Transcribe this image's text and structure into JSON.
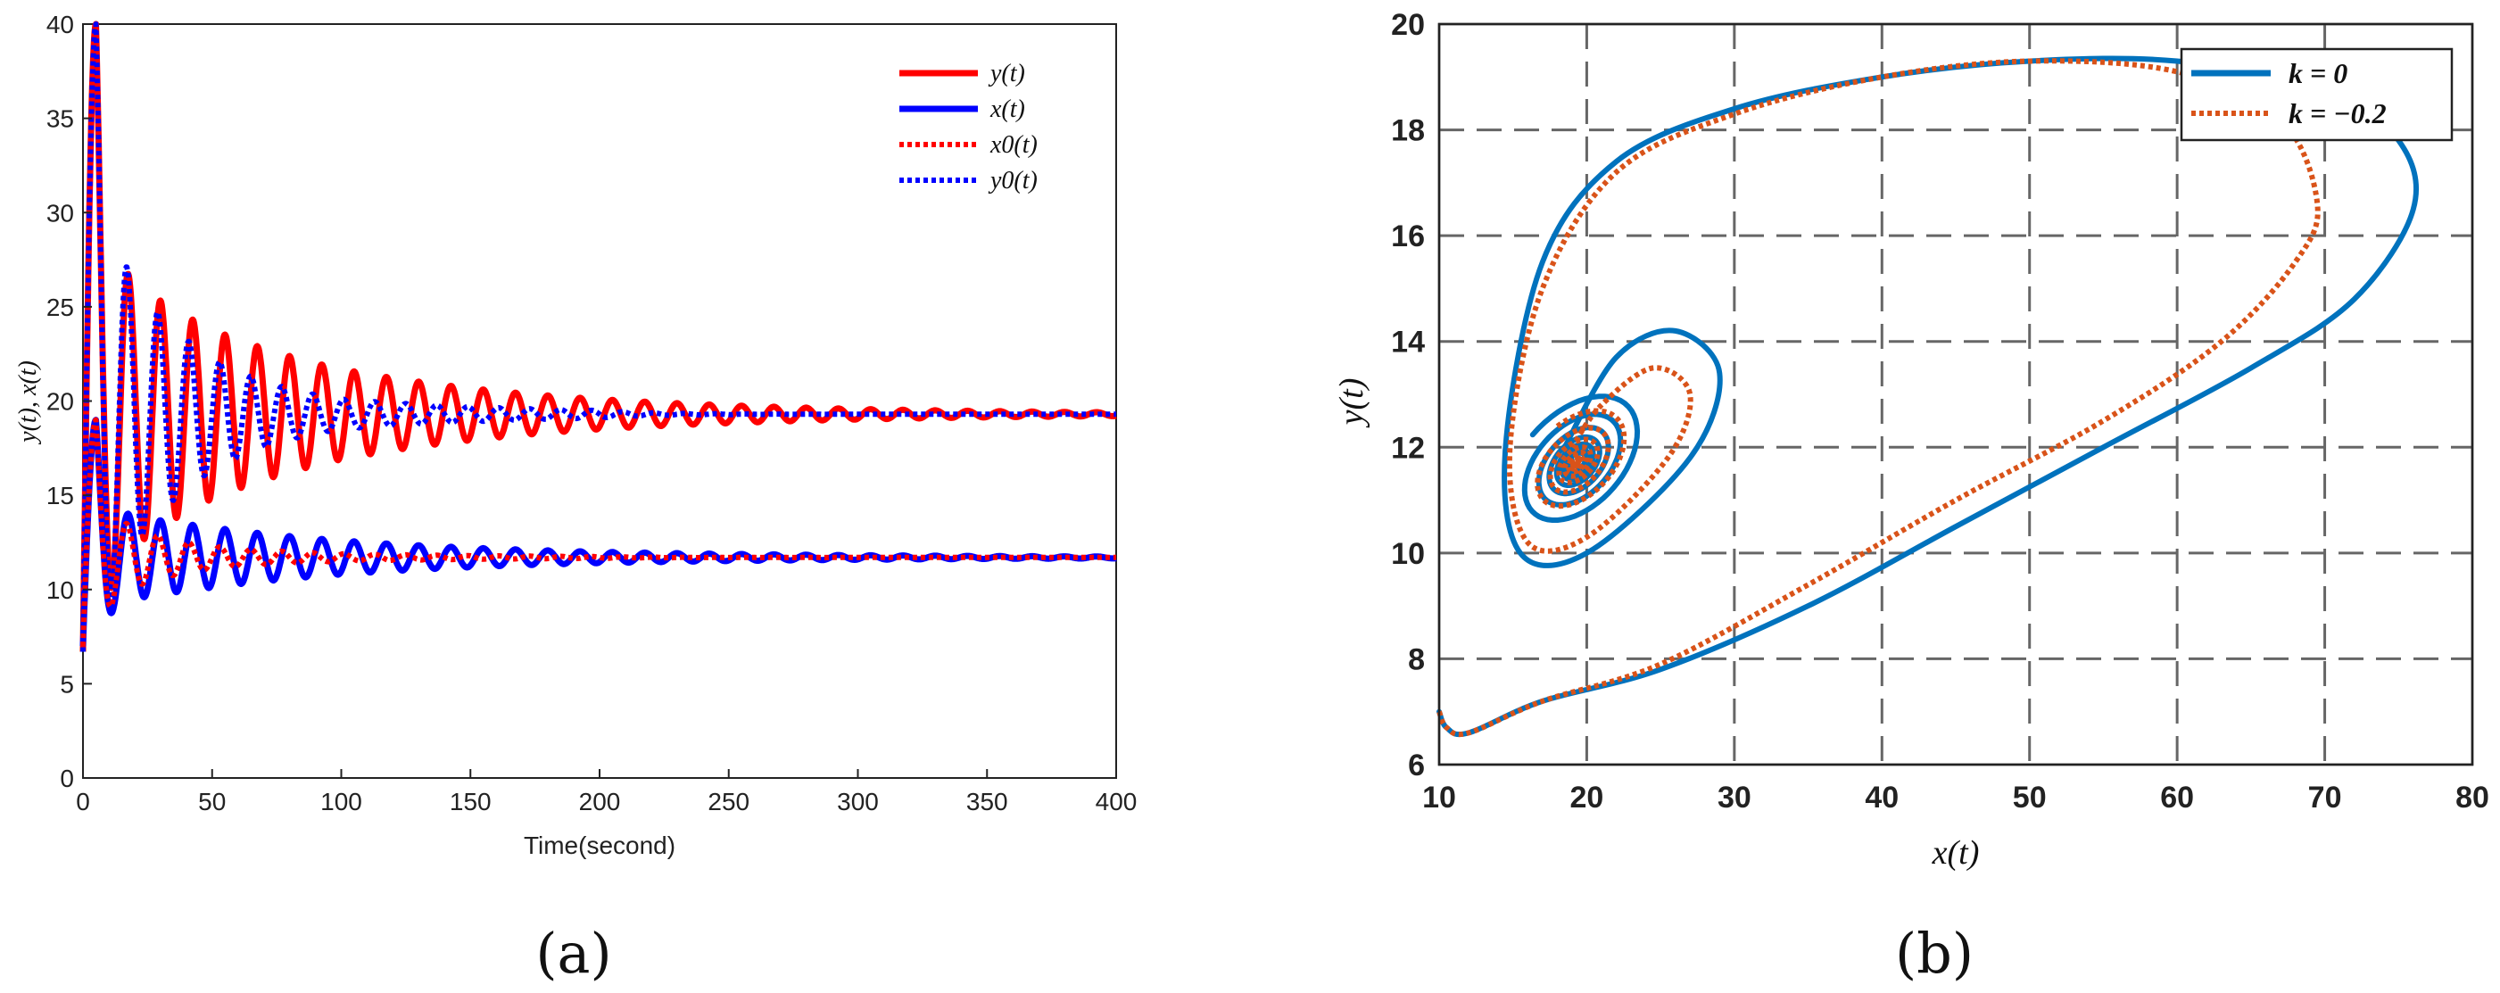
{
  "chart_data": [
    {
      "panel_label": "(a)",
      "type": "line",
      "xlabel": "Time(second)",
      "ylabel": "y(t), x(t)",
      "xlim": [
        0,
        400
      ],
      "ylim": [
        0,
        40
      ],
      "x_ticks": [
        "0",
        "50",
        "100",
        "150",
        "200",
        "250",
        "300",
        "350",
        "400"
      ],
      "y_ticks": [
        "0",
        "5",
        "10",
        "15",
        "20",
        "25",
        "30",
        "35",
        "40"
      ],
      "grid": false,
      "legend_position": "top-right",
      "series": [
        {
          "name": "y(t)",
          "color": "#ff0000",
          "style": "solid",
          "equilibrium": 19.3,
          "start": 6.7,
          "first_peak": 40,
          "osc_period": 12.5,
          "envelope": [
            [
              15,
              7.5
            ],
            [
              50,
              4.5
            ],
            [
              100,
              2.4
            ],
            [
              200,
              0.8
            ],
            [
              400,
              0.1
            ]
          ]
        },
        {
          "name": "x(t)",
          "color": "#0000ff",
          "style": "solid",
          "equilibrium": 11.7,
          "start": 7.0,
          "first_peak": 19.0,
          "osc_period": 12.5,
          "envelope": [
            [
              15,
              2.3
            ],
            [
              50,
              1.6
            ],
            [
              100,
              0.9
            ],
            [
              200,
              0.3
            ],
            [
              400,
              0.05
            ]
          ]
        },
        {
          "name": "x0(t)",
          "color": "#ff0000",
          "style": "dotted",
          "equilibrium": 11.7,
          "start": 7.0,
          "first_peak": 19.0,
          "osc_period": 12.0,
          "envelope": [
            [
              15,
              1.8
            ],
            [
              50,
              0.6
            ],
            [
              100,
              0.2
            ],
            [
              200,
              0.05
            ],
            [
              400,
              0.0
            ]
          ]
        },
        {
          "name": "y0(t)",
          "color": "#0000ff",
          "style": "dotted",
          "equilibrium": 19.3,
          "start": 6.7,
          "first_peak": 40,
          "osc_period": 12.0,
          "envelope": [
            [
              15,
              8.0
            ],
            [
              50,
              3.0
            ],
            [
              100,
              0.8
            ],
            [
              200,
              0.2
            ],
            [
              400,
              0.0
            ]
          ]
        }
      ]
    },
    {
      "panel_label": "(b)",
      "type": "line",
      "xlabel": "x(t)",
      "ylabel": "y(t)",
      "xlim": [
        10,
        80
      ],
      "ylim": [
        6,
        20
      ],
      "x_ticks": [
        "10",
        "20",
        "30",
        "40",
        "50",
        "60",
        "70",
        "80"
      ],
      "y_ticks": [
        "6",
        "8",
        "10",
        "12",
        "14",
        "16",
        "18",
        "20"
      ],
      "grid": true,
      "legend_position": "top-right",
      "series": [
        {
          "name": "k = 0",
          "color": "#0072bd",
          "style": "solid",
          "outer_loop": [
            [
              10,
              7.0
            ],
            [
              10.5,
              6.7
            ],
            [
              12,
              6.6
            ],
            [
              17,
              7.2
            ],
            [
              25,
              7.8
            ],
            [
              35,
              9.0
            ],
            [
              45,
              10.5
            ],
            [
              55,
              12.0
            ],
            [
              65,
              13.5
            ],
            [
              72,
              14.8
            ],
            [
              76,
              16.5
            ],
            [
              75,
              17.8
            ],
            [
              70,
              18.8
            ],
            [
              60,
              19.3
            ],
            [
              50,
              19.3
            ],
            [
              40,
              19.0
            ],
            [
              30,
              18.4
            ],
            [
              22,
              17.4
            ],
            [
              17,
              15.5
            ],
            [
              14.5,
              12.0
            ],
            [
              15.5,
              10.0
            ],
            [
              20,
              10.0
            ],
            [
              27,
              11.8
            ],
            [
              29,
              13.4
            ],
            [
              26,
              14.2
            ],
            [
              22,
              13.7
            ],
            [
              18.5,
              12.0
            ]
          ],
          "spiral_center": [
            19.3,
            11.7
          ],
          "spiral_turns": 7,
          "spiral_radius_x": [
            9.5,
            1.0
          ],
          "spiral_radius_y": [
            2.2,
            0.25
          ]
        },
        {
          "name": "k = −0.2",
          "color": "#d95319",
          "style": "dotted",
          "outer_loop": [
            [
              10,
              7.0
            ],
            [
              10.5,
              6.7
            ],
            [
              12,
              6.6
            ],
            [
              17,
              7.2
            ],
            [
              25,
              7.9
            ],
            [
              35,
              9.4
            ],
            [
              45,
              11.0
            ],
            [
              55,
              12.5
            ],
            [
              63,
              14.0
            ],
            [
              68,
              15.5
            ],
            [
              69.5,
              16.6
            ],
            [
              67,
              18.2
            ],
            [
              60,
              19.1
            ],
            [
              50,
              19.3
            ],
            [
              40,
              19.0
            ],
            [
              30,
              18.3
            ],
            [
              22,
              17.2
            ],
            [
              17,
              15.0
            ],
            [
              14.8,
              12.0
            ],
            [
              16,
              10.2
            ],
            [
              20,
              10.3
            ],
            [
              25.5,
              11.8
            ],
            [
              27,
              13.0
            ],
            [
              24.5,
              13.5
            ],
            [
              21,
              12.8
            ],
            [
              19,
              12.0
            ]
          ],
          "spiral_center": [
            19.3,
            11.7
          ],
          "spiral_turns": 9,
          "spiral_radius_x": [
            7.5,
            0.2
          ],
          "spiral_radius_y": [
            1.7,
            0.05
          ]
        }
      ]
    }
  ]
}
